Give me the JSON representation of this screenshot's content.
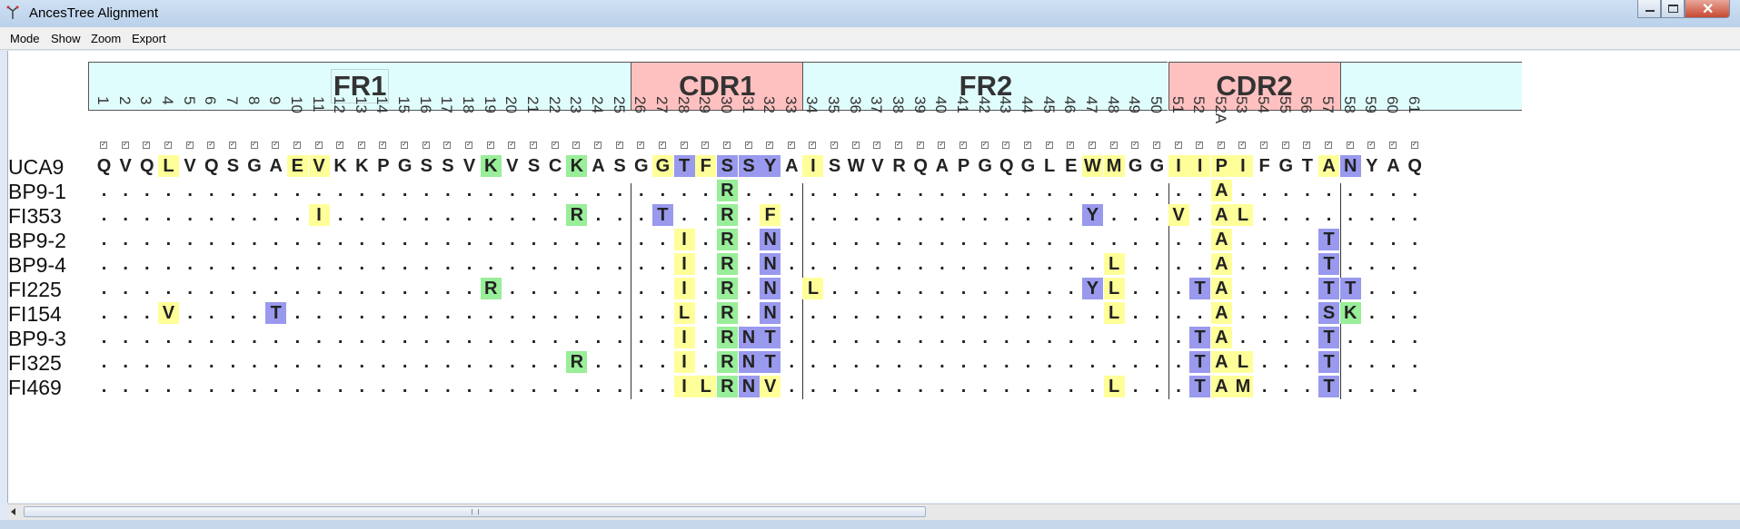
{
  "window": {
    "title": "AncesTree Alignment"
  },
  "menu": [
    "Mode",
    "Show",
    "Zoom",
    "Export"
  ],
  "regions": [
    {
      "label": "FR1",
      "type": "fr",
      "from": 0,
      "to": 25,
      "boxed": true
    },
    {
      "label": "CDR1",
      "type": "cdr",
      "from": 25,
      "to": 33
    },
    {
      "label": "FR2",
      "type": "fr",
      "from": 33,
      "to": 50
    },
    {
      "label": "CDR2",
      "type": "cdr",
      "from": 50,
      "to": 58
    },
    {
      "label": "",
      "type": "fr",
      "from": 58,
      "to": 61
    }
  ],
  "positions": [
    "1",
    "2",
    "3",
    "4",
    "5",
    "6",
    "7",
    "8",
    "9",
    "10",
    "11",
    "12",
    "13",
    "14",
    "15",
    "16",
    "17",
    "18",
    "19",
    "20",
    "21",
    "22",
    "23",
    "24",
    "25",
    "26",
    "27",
    "28",
    "29",
    "30",
    "31",
    "32",
    "33",
    "34",
    "35",
    "36",
    "37",
    "38",
    "39",
    "40",
    "41",
    "42",
    "43",
    "44",
    "45",
    "46",
    "47",
    "48",
    "49",
    "50",
    "51",
    "52",
    "52A",
    "53",
    "54",
    "55",
    "56",
    "57",
    "58",
    "59",
    "60",
    "61"
  ],
  "region_boundaries": [
    25,
    33,
    50,
    58
  ],
  "reference": {
    "name": "UCA9",
    "seq": "QVQLVQSGAEVKKPGSSVKVSCKASGGTFSSYAISWVRQAPGQGLEWMGGIIPIFGTANYAQ",
    "colors": {
      "3": "y",
      "9": "y",
      "10": "y",
      "18": "g",
      "22": "g",
      "26": "y",
      "27": "b",
      "28": "y",
      "29": "b",
      "30": "b",
      "31": "b",
      "33": "y",
      "46": "y",
      "47": "y",
      "50": "y",
      "51": "y",
      "52": "y",
      "53": "y",
      "57": "y",
      "58": "b"
    }
  },
  "sequences": [
    {
      "name": "BP9-1",
      "muts": [
        [
          29,
          "R",
          "g"
        ],
        [
          52,
          "A",
          "y"
        ]
      ]
    },
    {
      "name": "FI353",
      "muts": [
        [
          10,
          "I",
          "y"
        ],
        [
          22,
          "R",
          "g"
        ],
        [
          26,
          "T",
          "b"
        ],
        [
          29,
          "R",
          "g"
        ],
        [
          31,
          "F",
          "y"
        ],
        [
          46,
          "Y",
          "b"
        ],
        [
          50,
          "V",
          "y"
        ],
        [
          52,
          "A",
          "y"
        ],
        [
          53,
          "L",
          "y"
        ]
      ]
    },
    {
      "name": "BP9-2",
      "muts": [
        [
          27,
          "I",
          "y"
        ],
        [
          29,
          "R",
          "g"
        ],
        [
          31,
          "N",
          "b"
        ],
        [
          52,
          "A",
          "y"
        ],
        [
          57,
          "T",
          "b"
        ]
      ]
    },
    {
      "name": "BP9-4",
      "muts": [
        [
          27,
          "I",
          "y"
        ],
        [
          29,
          "R",
          "g"
        ],
        [
          31,
          "N",
          "b"
        ],
        [
          47,
          "L",
          "y"
        ],
        [
          52,
          "A",
          "y"
        ],
        [
          57,
          "T",
          "b"
        ]
      ]
    },
    {
      "name": "FI225",
      "muts": [
        [
          18,
          "R",
          "g"
        ],
        [
          27,
          "I",
          "y"
        ],
        [
          29,
          "R",
          "g"
        ],
        [
          31,
          "N",
          "b"
        ],
        [
          33,
          "L",
          "y"
        ],
        [
          46,
          "Y",
          "b"
        ],
        [
          47,
          "L",
          "y"
        ],
        [
          51,
          "T",
          "b"
        ],
        [
          52,
          "A",
          "y"
        ],
        [
          57,
          "T",
          "b"
        ],
        [
          58,
          "T",
          "b"
        ]
      ]
    },
    {
      "name": "FI154",
      "muts": [
        [
          3,
          "V",
          "y"
        ],
        [
          8,
          "T",
          "b"
        ],
        [
          27,
          "L",
          "y"
        ],
        [
          29,
          "R",
          "g"
        ],
        [
          31,
          "N",
          "b"
        ],
        [
          47,
          "L",
          "y"
        ],
        [
          52,
          "A",
          "y"
        ],
        [
          57,
          "S",
          "b"
        ],
        [
          58,
          "K",
          "g"
        ]
      ]
    },
    {
      "name": "BP9-3",
      "muts": [
        [
          27,
          "I",
          "y"
        ],
        [
          29,
          "R",
          "g"
        ],
        [
          30,
          "N",
          "b"
        ],
        [
          31,
          "T",
          "b"
        ],
        [
          51,
          "T",
          "b"
        ],
        [
          52,
          "A",
          "y"
        ],
        [
          57,
          "T",
          "b"
        ]
      ]
    },
    {
      "name": "FI325",
      "muts": [
        [
          22,
          "R",
          "g"
        ],
        [
          27,
          "I",
          "y"
        ],
        [
          29,
          "R",
          "g"
        ],
        [
          30,
          "N",
          "b"
        ],
        [
          31,
          "T",
          "b"
        ],
        [
          51,
          "T",
          "b"
        ],
        [
          52,
          "A",
          "y"
        ],
        [
          53,
          "L",
          "y"
        ],
        [
          57,
          "T",
          "b"
        ]
      ]
    },
    {
      "name": "FI469",
      "muts": [
        [
          27,
          "I",
          "y"
        ],
        [
          28,
          "L",
          "y"
        ],
        [
          29,
          "R",
          "g"
        ],
        [
          30,
          "N",
          "b"
        ],
        [
          31,
          "V",
          "y"
        ],
        [
          47,
          "L",
          "y"
        ],
        [
          51,
          "T",
          "b"
        ],
        [
          52,
          "A",
          "y"
        ],
        [
          53,
          "M",
          "y"
        ],
        [
          57,
          "T",
          "b"
        ]
      ]
    }
  ]
}
